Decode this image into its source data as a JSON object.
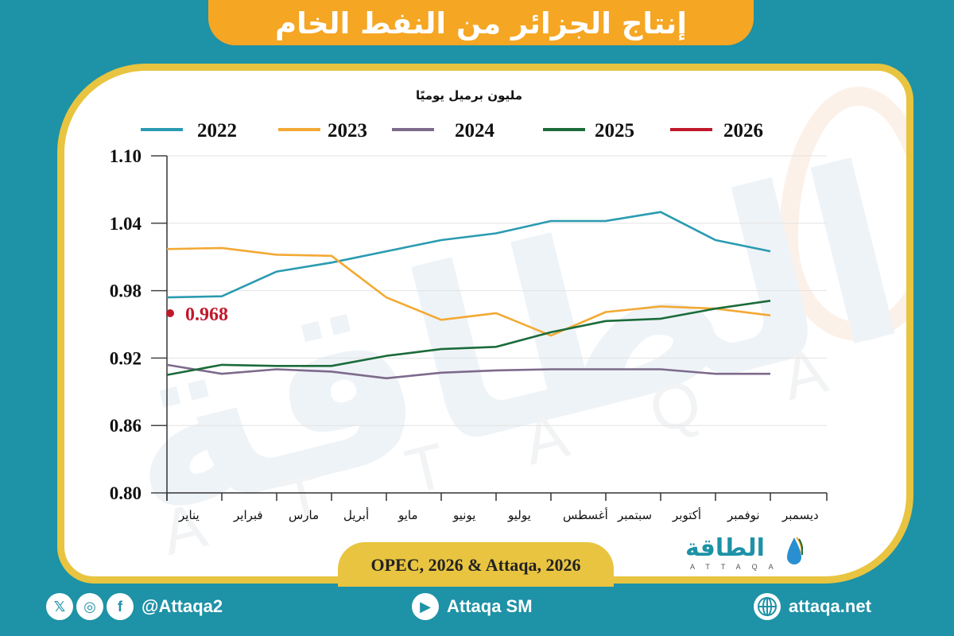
{
  "header": {
    "title": "إنتاج الجزائر من النفط الخام"
  },
  "chart_data": {
    "type": "line",
    "title": "إنتاج الجزائر من النفط الخام",
    "ylabel": "مليون برميل يوميًا",
    "xlabel": "",
    "categories": [
      "يناير",
      "فبراير",
      "مارس",
      "أبريل",
      "مايو",
      "يونيو",
      "يوليو",
      "أغسطس",
      "سبتمبر",
      "أكتوبر",
      "نوفمبر",
      "ديسمبر"
    ],
    "ylim": [
      0.8,
      1.1
    ],
    "yticks": [
      "1.10",
      "1.04",
      "0.98",
      "0.92",
      "0.86",
      "0.80"
    ],
    "ytick_values": [
      1.1,
      1.04,
      0.98,
      0.92,
      0.86,
      0.8
    ],
    "grid": true,
    "legend_position": "top",
    "series": [
      {
        "name": "2022",
        "color": "#2a9bb0",
        "values": [
          0.974,
          0.975,
          0.997,
          1.005,
          1.015,
          1.025,
          1.031,
          1.042,
          1.042,
          1.05,
          1.025,
          1.015
        ]
      },
      {
        "name": "2023",
        "color": "#f3a934",
        "values": [
          1.017,
          1.018,
          1.012,
          1.011,
          0.974,
          0.954,
          0.96,
          0.94,
          0.961,
          0.966,
          0.964,
          0.958
        ]
      },
      {
        "name": "2024",
        "color": "#7d6a8c",
        "values": [
          0.914,
          0.906,
          0.91,
          0.908,
          0.902,
          0.907,
          0.909,
          0.91,
          0.91,
          0.91,
          0.906,
          0.906
        ]
      },
      {
        "name": "2025",
        "color": "#1b6b3a",
        "values": [
          0.905,
          0.914,
          0.913,
          0.913,
          0.922,
          0.928,
          0.93,
          0.943,
          0.953,
          0.955,
          0.964,
          0.971
        ]
      },
      {
        "name": "2026",
        "color": "#c0182b",
        "values": [
          0.968
        ]
      }
    ],
    "annotations": [
      {
        "series": "2026",
        "month_index": 0,
        "text": "0.968",
        "color": "#c0182b"
      }
    ]
  },
  "source": {
    "text": "OPEC, 2026 & Attaqa, 2026"
  },
  "logo": {
    "arabic": "الطاقة",
    "english": "ATTAQA"
  },
  "footer": {
    "social_handle": "@Attaqa2",
    "youtube": "Attaqa SM",
    "website": "attaqa.net",
    "icons": [
      "x-icon",
      "instagram-icon",
      "facebook-icon",
      "youtube-icon",
      "globe-icon"
    ]
  },
  "colors": {
    "background": "#1e92a6",
    "frame_border": "#e8c440",
    "title_banner": "#f5a623",
    "annotation": "#c0182b"
  }
}
